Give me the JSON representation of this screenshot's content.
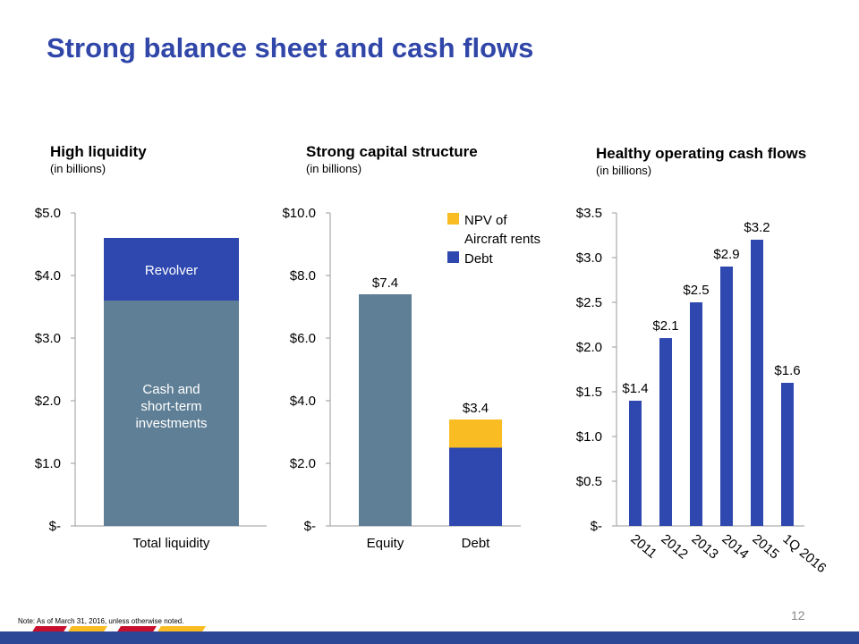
{
  "title": "Strong balance sheet and cash flows",
  "colors": {
    "title": "#3046a8",
    "cash": "#5f7f96",
    "revolver": "#2e48b0",
    "npv": "#f9bc23",
    "debt": "#2e48b0",
    "equity": "#5f7f96",
    "bar": "#2e48b0",
    "footer": "#2c4796"
  },
  "chart_data": [
    {
      "type": "bar",
      "stacked": true,
      "title": "High liquidity",
      "subtitle": "(in billions)",
      "categories": [
        "Total liquidity"
      ],
      "series": [
        {
          "name": "Cash and short-term investments",
          "values": [
            3.6
          ]
        },
        {
          "name": "Revolver",
          "values": [
            1.0
          ]
        }
      ],
      "ylim": [
        0,
        5
      ],
      "yticks": [
        "$-",
        "$1.0",
        "$2.0",
        "$3.0",
        "$4.0",
        "$5.0"
      ]
    },
    {
      "type": "bar",
      "stacked": true,
      "title": "Strong capital structure",
      "subtitle": "(in billions)",
      "categories": [
        "Equity",
        "Debt"
      ],
      "series": [
        {
          "name": "Equity",
          "values": [
            7.4,
            0
          ]
        },
        {
          "name": "Debt",
          "values": [
            0,
            2.5
          ]
        },
        {
          "name": "NPV of Aircraft rents",
          "values": [
            0,
            0.9
          ]
        }
      ],
      "totals": [
        "$7.4",
        "$3.4"
      ],
      "legend": [
        "NPV of",
        "Aircraft rents",
        "Debt"
      ],
      "legend_position": "top-right",
      "ylim": [
        0,
        10
      ],
      "yticks": [
        "$-",
        "$2.0",
        "$4.0",
        "$6.0",
        "$8.0",
        "$10.0"
      ]
    },
    {
      "type": "bar",
      "title": "Healthy operating cash flows",
      "subtitle": "(in billions)",
      "categories": [
        "2011",
        "2012",
        "2013",
        "2014",
        "2015",
        "1Q 2016"
      ],
      "values": [
        1.4,
        2.1,
        2.5,
        2.9,
        3.2,
        1.6
      ],
      "labels": [
        "$1.4",
        "$2.1",
        "$2.5",
        "$2.9",
        "$3.2",
        "$1.6"
      ],
      "ylim": [
        0,
        3.5
      ],
      "yticks": [
        "$-",
        "$0.5",
        "$1.0",
        "$1.5",
        "$2.0",
        "$2.5",
        "$3.0",
        "$3.5"
      ]
    }
  ],
  "labels": {
    "revolver": "Revolver",
    "cash": [
      "Cash and",
      "short-term",
      "investments"
    ]
  },
  "note": "Note: As of March 31, 2016, unless otherwise noted.",
  "page_number": "12"
}
